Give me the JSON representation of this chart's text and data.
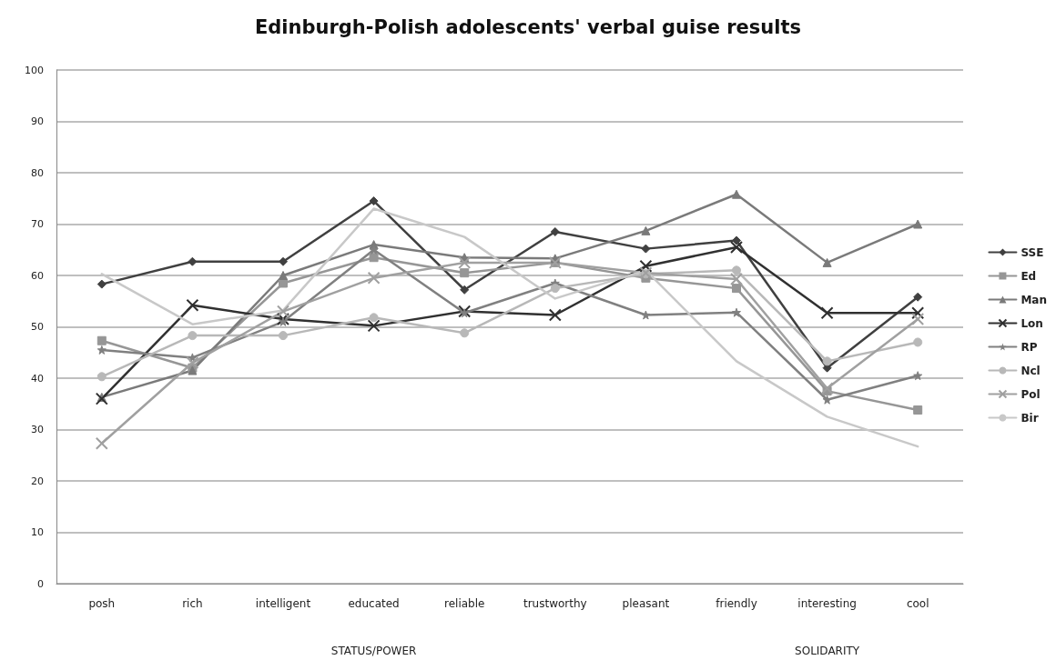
{
  "chart_data": {
    "type": "line",
    "title": "Edinburgh-Polish adolescents' verbal guise results",
    "categories": [
      "posh",
      "rich",
      "intelligent",
      "educated",
      "reliable",
      "trustworthy",
      "pleasant",
      "friendly",
      "interesting",
      "cool"
    ],
    "series": [
      {
        "name": "SSE",
        "color": "#404040",
        "marker": "diamond",
        "values": [
          58.3,
          62.7,
          62.7,
          74.5,
          57.2,
          68.5,
          65.2,
          66.8,
          42,
          55.8
        ]
      },
      {
        "name": "Ed",
        "color": "#969696",
        "marker": "square",
        "values": [
          47.3,
          42,
          58.5,
          63.5,
          60.5,
          62.5,
          59.5,
          57.5,
          37.5,
          33.8
        ]
      },
      {
        "name": "Man",
        "color": "#7a7a7a",
        "marker": "triangle",
        "values": [
          36.3,
          41.5,
          60,
          66,
          63.5,
          63.3,
          68.7,
          75.8,
          62.5,
          70
        ]
      },
      {
        "name": "Lon",
        "color": "#303030",
        "marker": "cross",
        "values": [
          36,
          54.2,
          51.5,
          50.2,
          53,
          52.3,
          61.8,
          65.5,
          52.7,
          52.7
        ]
      },
      {
        "name": "RP",
        "color": "#808080",
        "marker": "star",
        "values": [
          45.5,
          44,
          51,
          65,
          52.7,
          58.5,
          52.3,
          52.8,
          35.8,
          40.5
        ]
      },
      {
        "name": "Ncl",
        "color": "#b8b8b8",
        "marker": "circle",
        "values": [
          40.3,
          48.3,
          48.3,
          51.8,
          48.8,
          57.5,
          60.3,
          61,
          43.3,
          47
        ]
      },
      {
        "name": "Pol",
        "color": "#a0a0a0",
        "marker": "cross",
        "values": [
          27.3,
          43,
          53,
          59.5,
          62.5,
          62.5,
          60.5,
          59.3,
          38,
          51.5
        ]
      },
      {
        "name": "Bir",
        "color": "#c8c8c8",
        "marker": "none",
        "values": [
          60.3,
          50.5,
          53.2,
          73,
          67.5,
          55.5,
          61,
          43.3,
          32.5,
          26.7
        ]
      }
    ],
    "ylim": [
      0,
      100
    ],
    "yticks": [
      0,
      10,
      20,
      30,
      40,
      50,
      60,
      70,
      80,
      90,
      100
    ],
    "grid": "y",
    "legend": "right",
    "annotations": [
      "STATUS/POWER",
      "SOLIDARITY"
    ]
  }
}
